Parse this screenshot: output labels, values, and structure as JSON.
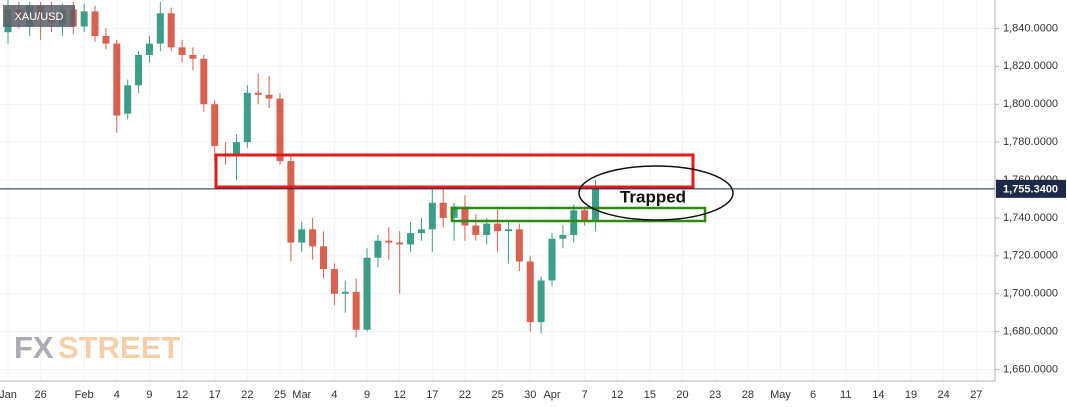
{
  "chart_data": {
    "type": "candlestick",
    "symbol": "XAU/USD",
    "watermark": {
      "part1": "FX",
      "part2": "STREET"
    },
    "annotation": "Trapped",
    "up_color": "#3c9e87",
    "down_color": "#d9614f",
    "grid": true,
    "categories": [
      "Jan",
      null,
      null,
      "26",
      null,
      null,
      null,
      "Feb",
      null,
      null,
      "4",
      null,
      null,
      "9",
      null,
      null,
      "12",
      null,
      null,
      "17",
      null,
      null,
      "22",
      null,
      null,
      "25",
      null,
      "Mar",
      null,
      null,
      "4",
      null,
      null,
      "9",
      null,
      null,
      "12",
      null,
      null,
      "17",
      null,
      null,
      "22",
      null,
      null,
      "25",
      null,
      null,
      "30",
      null,
      "Apr",
      null,
      null,
      "7",
      null,
      null,
      "12",
      null,
      null,
      "15",
      null,
      null,
      "20",
      null,
      null,
      "23",
      null,
      null,
      "28",
      null,
      null,
      "May",
      null,
      null,
      "6",
      null,
      null,
      "11",
      null,
      null,
      "14",
      null,
      null,
      "19",
      null,
      null,
      "24",
      null,
      null,
      "27",
      null
    ],
    "open": [
      1838,
      1850,
      1841,
      1852,
      1847,
      1842,
      1850,
      1841,
      1849,
      1836,
      1832,
      1795,
      1810,
      1826,
      1832,
      1848,
      1830,
      1826,
      1824,
      1800,
      1774,
      1773,
      1780,
      1806,
      1805,
      1803,
      1770,
      1727,
      1734,
      1725,
      1713,
      1700,
      1701,
      1681,
      1719,
      1728,
      1727,
      1726,
      1732,
      1734,
      1748,
      1740,
      1746,
      1736,
      1731,
      1737,
      1733,
      1734,
      1717,
      1685,
      1707,
      1729,
      1731,
      1744,
      1739,
      null,
      null,
      null,
      null,
      null,
      null,
      null,
      null,
      null,
      null,
      null,
      null,
      null,
      null,
      null,
      null,
      null,
      null,
      null,
      null,
      null,
      null,
      null,
      null,
      null,
      null,
      null,
      null,
      null,
      null,
      null,
      null,
      null,
      null,
      null,
      null
    ],
    "high": [
      1855,
      1854,
      1854,
      1854,
      1854,
      1853,
      1854,
      1853,
      1852,
      1840,
      1834,
      1813,
      1828,
      1836,
      1854,
      1851,
      1834,
      1830,
      1826,
      1802,
      1780,
      1784,
      1810,
      1816,
      1815,
      1806,
      1773,
      1738,
      1740,
      1733,
      1716,
      1707,
      1708,
      1724,
      1731,
      1735,
      1733,
      1738,
      1740,
      1755,
      1756,
      1748,
      1752,
      1742,
      1740,
      1745,
      1738,
      1737,
      1720,
      1709,
      1732,
      1736,
      1747,
      1746,
      1760,
      null,
      null,
      null,
      null,
      null,
      null,
      null,
      null,
      null,
      null,
      null,
      null,
      null,
      null,
      null,
      null,
      null,
      null,
      null,
      null,
      null,
      null,
      null,
      null,
      null,
      null,
      null,
      null,
      null,
      null,
      null,
      null,
      null,
      null,
      null,
      null
    ],
    "low": [
      1832,
      1840,
      1836,
      1834,
      1838,
      1836,
      1837,
      1838,
      1833,
      1829,
      1785,
      1792,
      1806,
      1822,
      1828,
      1828,
      1822,
      1818,
      1796,
      1770,
      1768,
      1760,
      1777,
      1800,
      1798,
      1768,
      1717,
      1722,
      1718,
      1708,
      1694,
      1690,
      1677,
      1680,
      1714,
      1718,
      1700,
      1722,
      1728,
      1722,
      1735,
      1728,
      1728,
      1728,
      1726,
      1722,
      1716,
      1712,
      1680,
      1679,
      1704,
      1724,
      1727,
      1736,
      1733,
      null,
      null,
      null,
      null,
      null,
      null,
      null,
      null,
      null,
      null,
      null,
      null,
      null,
      null,
      null,
      null,
      null,
      null,
      null,
      null,
      null,
      null,
      null,
      null,
      null,
      null,
      null,
      null,
      null,
      null,
      null,
      null,
      null,
      null,
      null,
      null
    ],
    "close": [
      1850,
      1845,
      1852,
      1846,
      1843,
      1850,
      1841,
      1849,
      1836,
      1832,
      1794,
      1810,
      1826,
      1832,
      1848,
      1830,
      1826,
      1824,
      1800,
      1778,
      1773,
      1780,
      1806,
      1805,
      1803,
      1770,
      1727,
      1734,
      1725,
      1713,
      1700,
      1701,
      1681,
      1719,
      1728,
      1727,
      1726,
      1732,
      1734,
      1748,
      1740,
      1746,
      1736,
      1731,
      1737,
      1733,
      1734,
      1717,
      1685,
      1707,
      1729,
      1731,
      1744,
      1739,
      1755.34,
      null,
      null,
      null,
      null,
      null,
      null,
      null,
      null,
      null,
      null,
      null,
      null,
      null,
      null,
      null,
      null,
      null,
      null,
      null,
      null,
      null,
      null,
      null,
      null,
      null,
      null,
      null,
      null,
      null,
      null,
      null,
      null,
      null,
      null,
      null,
      null
    ],
    "last_price": {
      "value": 1755.34,
      "label": "1,755.3400"
    },
    "ylim": [
      1655,
      1855
    ],
    "yticks": [
      {
        "value": 1660,
        "label": "1,660.0000"
      },
      {
        "value": 1680,
        "label": "1,680.0000"
      },
      {
        "value": 1700,
        "label": "1,700.0000"
      },
      {
        "value": 1720,
        "label": "1,720.0000"
      },
      {
        "value": 1740,
        "label": "1,740.0000"
      },
      {
        "value": 1760,
        "label": "1,760.0000"
      },
      {
        "value": 1780,
        "label": "1,780.0000"
      },
      {
        "value": 1800,
        "label": "1,800.0000"
      },
      {
        "value": 1820,
        "label": "1,820.0000"
      },
      {
        "value": 1840,
        "label": "1,840.0000"
      }
    ]
  }
}
